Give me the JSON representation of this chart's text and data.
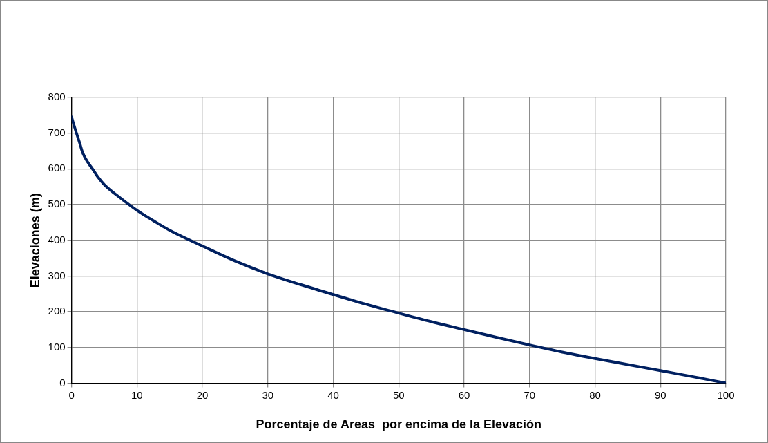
{
  "chart_data": {
    "type": "line",
    "xlabel": "Porcentaje de Areas  por encima de la Elevación",
    "ylabel": "Elevaciones (m)",
    "x": [
      0,
      0.75,
      1.25,
      1.7,
      2.5,
      3.2,
      4,
      5,
      7.5,
      10,
      12.5,
      15,
      20,
      25,
      30,
      35,
      40,
      45,
      50,
      55,
      60,
      65,
      70,
      75,
      80,
      85,
      90,
      95,
      100
    ],
    "series": [
      {
        "color": "#002060",
        "values": [
          745,
          700,
          672,
          645,
          618,
          600,
          578,
          556,
          518,
          484,
          455,
          428,
          384,
          342,
          306,
          276,
          248,
          221,
          196,
          172,
          150,
          128,
          107,
          87,
          69,
          52,
          35,
          18,
          0
        ]
      }
    ],
    "xlim": [
      0,
      100
    ],
    "xticks": [
      0,
      10,
      20,
      30,
      40,
      50,
      60,
      70,
      80,
      90,
      100
    ],
    "ylim": [
      0,
      800
    ],
    "yticks": [
      0,
      100,
      200,
      300,
      400,
      500,
      600,
      700,
      800
    ],
    "grid": true,
    "legend": false,
    "marker": "none",
    "line_style": "solid"
  }
}
